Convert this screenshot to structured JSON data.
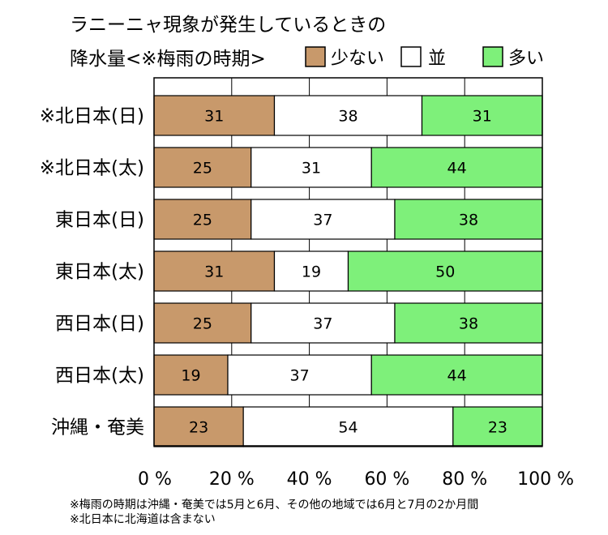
{
  "chart_data": {
    "type": "bar",
    "orientation": "horizontal",
    "stacked": true,
    "title_lines": [
      "ラニーニャ現象が発生しているときの",
      "降水量<※梅雨の時期>"
    ],
    "categories": [
      "※北日本(日)",
      "※北日本(太)",
      "東日本(日)",
      "東日本(太)",
      "西日本(日)",
      "西日本(太)",
      "沖縄・奄美"
    ],
    "series": [
      {
        "name": "少ない",
        "color": "#c8996b",
        "values": [
          31,
          25,
          25,
          31,
          25,
          19,
          23
        ]
      },
      {
        "name": "並",
        "color": "#ffffff",
        "values": [
          38,
          31,
          37,
          19,
          37,
          37,
          54
        ]
      },
      {
        "name": "多い",
        "color": "#7ef07a",
        "values": [
          31,
          44,
          38,
          50,
          38,
          44,
          23
        ]
      }
    ],
    "xlim": [
      0,
      100
    ],
    "x_ticks": [
      "0 %",
      "20 %",
      "40 %",
      "60 %",
      "80 %",
      "100 %"
    ],
    "x_tick_values": [
      0,
      20,
      40,
      60,
      80,
      100
    ],
    "grid": true,
    "legend_position": "top-right"
  },
  "notes": [
    "※梅雨の時期は沖縄・奄美では5月と6月、その他の地域では6月と7月の2か月間",
    "※北日本に北海道は含まない"
  ]
}
